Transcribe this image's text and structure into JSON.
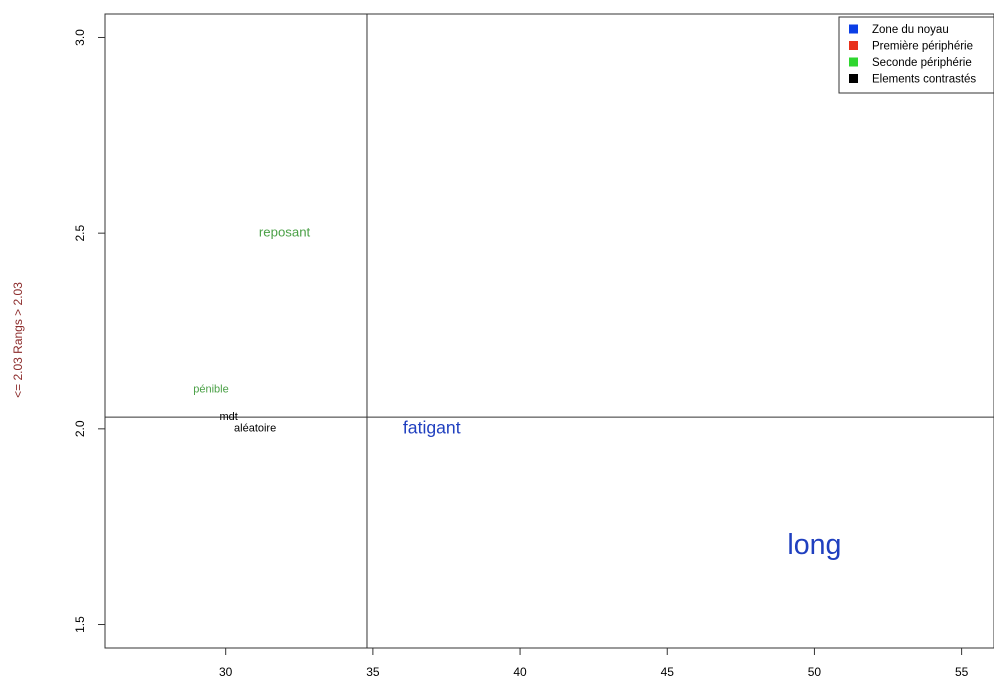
{
  "chart_data": {
    "type": "scatter",
    "title": "",
    "xlabel": "",
    "ylabel": "<= 2.03  Rangs  > 2.03",
    "xlim": [
      25.9,
      56.1
    ],
    "ylim": [
      1.44,
      3.06
    ],
    "x_ticks": [
      30,
      35,
      40,
      45,
      50,
      55
    ],
    "y_ticks": [
      1.5,
      2.0,
      2.5,
      3.0
    ],
    "x_tick_labels": [
      "30",
      "35",
      "40",
      "45",
      "50",
      "55"
    ],
    "y_tick_labels": [
      "1.5",
      "2.0",
      "2.5",
      "3.0"
    ],
    "reference_lines": {
      "x": 34.8,
      "y": 2.03
    },
    "grid": false,
    "legend_position": "top-right",
    "series": [
      {
        "name": "Zone du noyau",
        "color": "#1f3fbf",
        "points": [
          {
            "label": "fatigant",
            "x": 37.0,
            "y": 2.0,
            "size": 1.6
          },
          {
            "label": "long",
            "x": 50.0,
            "y": 1.7,
            "size": 2.6
          }
        ]
      },
      {
        "name": "Première périphérie",
        "color": "#e8311c",
        "points": []
      },
      {
        "name": "Seconde périphérie",
        "color": "#4aa046",
        "points": [
          {
            "label": "reposant",
            "x": 32.0,
            "y": 2.5,
            "size": 1.2
          },
          {
            "label": "pénible",
            "x": 29.5,
            "y": 2.1,
            "size": 1.0
          }
        ]
      },
      {
        "name": "Elements contrastés",
        "color": "#000000",
        "points": [
          {
            "label": "mdt",
            "x": 30.1,
            "y": 2.03,
            "size": 1.0
          },
          {
            "label": "aléatoire",
            "x": 31.0,
            "y": 2.0,
            "size": 1.0
          }
        ]
      }
    ],
    "legend_colors": {
      "Zone du noyau": "#0b3ee6",
      "Première périphérie": "#e8311c",
      "Seconde périphérie": "#2fd62f",
      "Elements contrastés": "#000000"
    }
  }
}
